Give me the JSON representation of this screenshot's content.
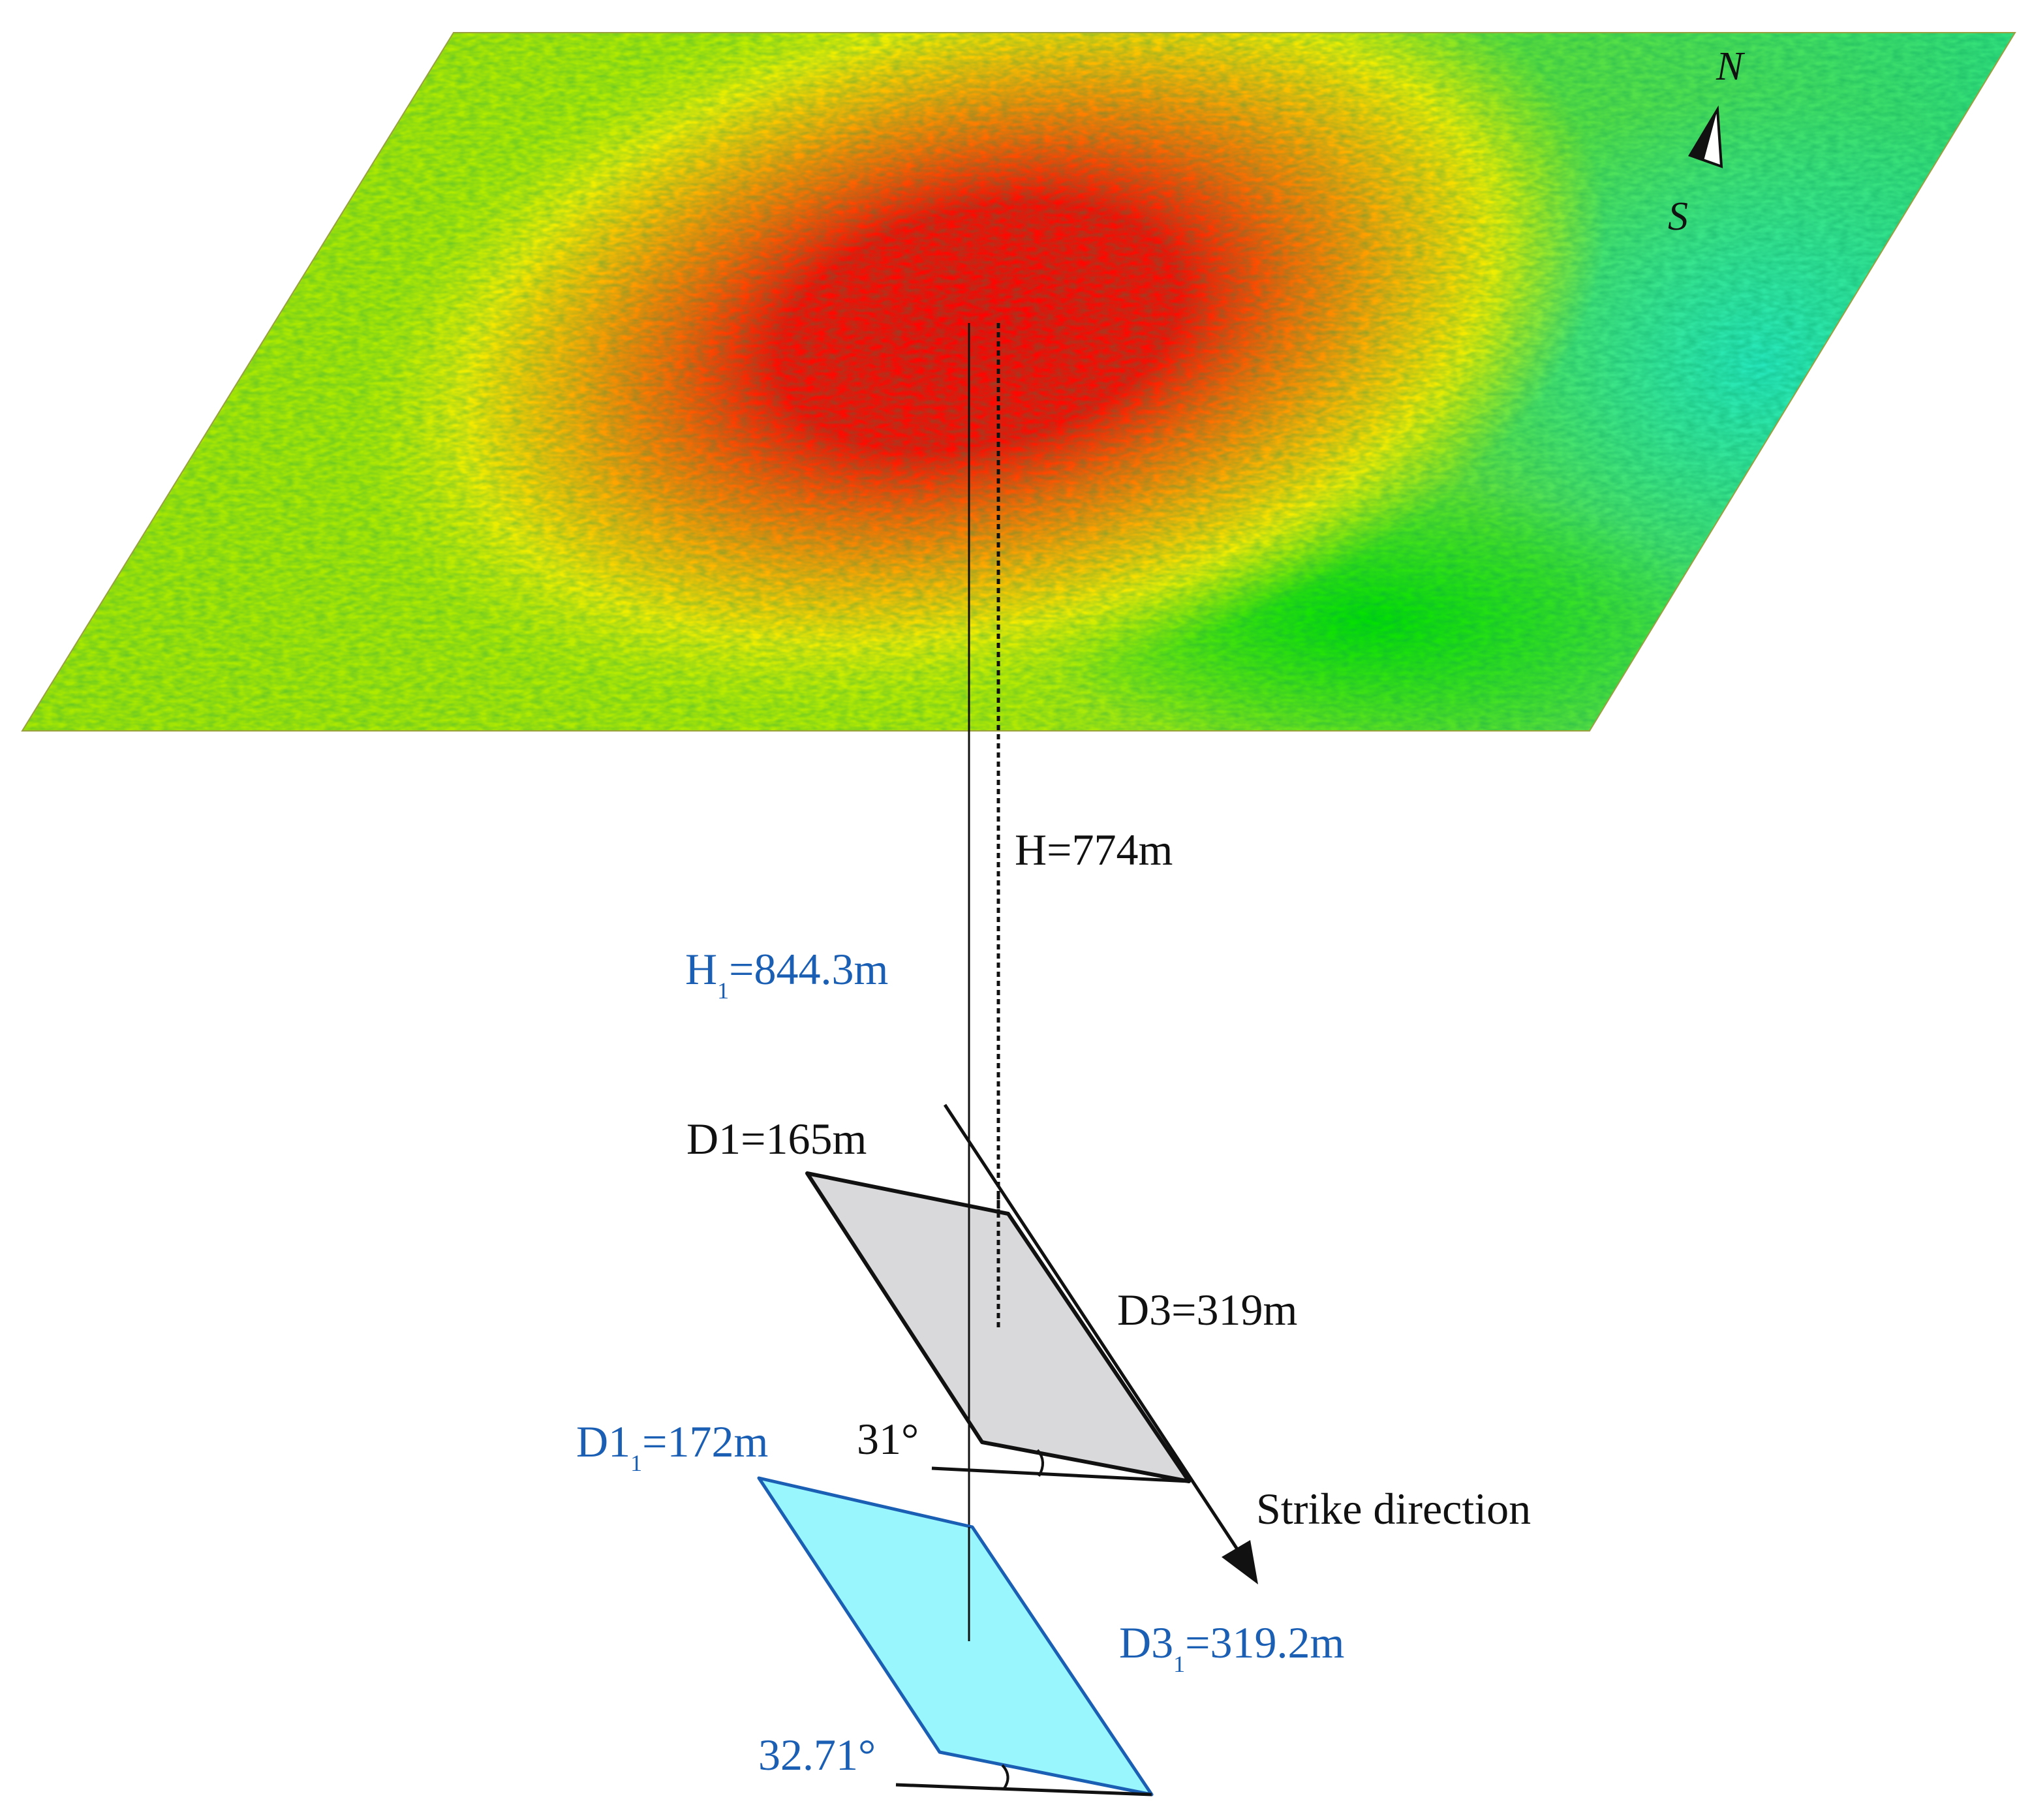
{
  "surface": {
    "name": "subsidence-basin",
    "colors": {
      "outer": "#8ee000",
      "ring_yellow": "#e6f000",
      "ring_orange": "#ffa400",
      "core_red": "#ff0000",
      "cyan_patch": "#22e8c8",
      "green_patch": "#00e000"
    }
  },
  "compass": {
    "north": "N",
    "south": "S",
    "icon": "north-arrow-icon"
  },
  "labels": {
    "h_main": "H=774m",
    "h1_prefix": "H",
    "h1_sub": "1",
    "h1_suffix": "=844.3m",
    "d1": "D1=165m",
    "d3": "D3=319m",
    "angle_main": "31°",
    "strike": "Strike direction",
    "d1_1_prefix": "D1",
    "d1_1_sub": "1",
    "d1_1_suffix": "=172m",
    "d3_1_prefix": "D3",
    "d3_1_sub": "1",
    "d3_1_suffix": "=319.2m",
    "angle_blue": "32.71°"
  },
  "colors": {
    "black_text": "#111111",
    "blue_text": "#1a5fb4",
    "gray_plane": "#d9d9db",
    "cyan_plane": "#98f6fc",
    "cyan_outline": "#1a5fb4"
  }
}
